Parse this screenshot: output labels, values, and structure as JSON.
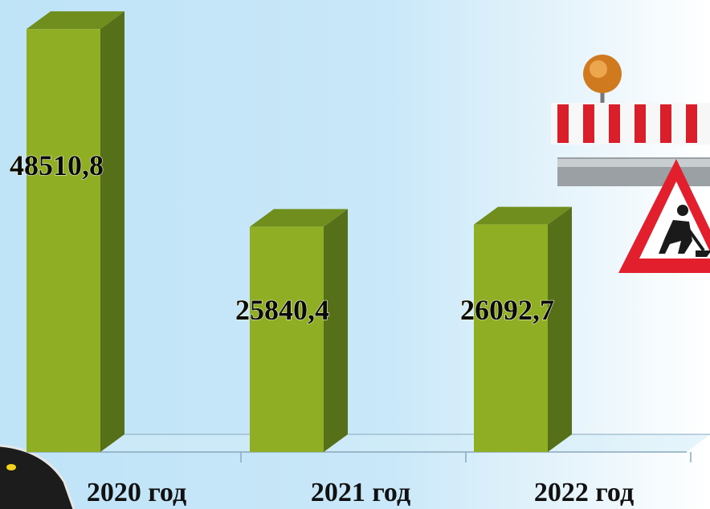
{
  "chart_data": {
    "type": "bar",
    "style": "3d-column",
    "categories": [
      "2020 год",
      "2021 год",
      "2022 год"
    ],
    "values": [
      48510.8,
      25840.4,
      26092.7
    ],
    "value_labels": [
      "48510,8",
      "25840,4",
      "26092,7"
    ],
    "title": "",
    "xlabel": "",
    "ylabel": "",
    "ylim": [
      0,
      50000
    ],
    "grid": false,
    "legend": "none"
  },
  "colors": {
    "bar_front": "#8fae24",
    "bar_side": "#56701a",
    "bar_top": "#6f8e1e",
    "floor_line": "#8aa8bc"
  },
  "decor": {
    "barrier_icon": "road-barrier-icon",
    "warning_sign_icon": "road-works-sign-icon",
    "road_icon": "road-icon"
  }
}
